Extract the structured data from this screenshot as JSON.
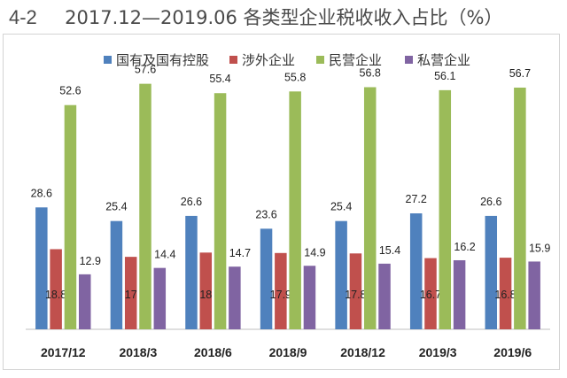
{
  "title": {
    "prefix": "4-2",
    "text": "2017.12—2019.06 各类型企业税收收入占比（%）"
  },
  "chart_data": {
    "type": "bar",
    "title": "2017.12—2019.06 各类型企业税收收入占比（%）",
    "xlabel": "",
    "ylabel": "",
    "ylim": [
      0,
      65
    ],
    "grid": false,
    "legend_position": "top",
    "categories": [
      "2017/12",
      "2018/3",
      "2018/6",
      "2018/9",
      "2018/12",
      "2019/3",
      "2019/6"
    ],
    "series": [
      {
        "name": "国有及国有控股",
        "color": "#4f81bd",
        "values": [
          28.6,
          25.4,
          26.6,
          23.6,
          25.4,
          27.2,
          26.6
        ]
      },
      {
        "name": "涉外企业",
        "color": "#c0504d",
        "values": [
          18.8,
          17,
          18,
          17.9,
          17.8,
          16.7,
          16.8
        ]
      },
      {
        "name": "民营企业",
        "color": "#9bbb59",
        "values": [
          52.6,
          57.6,
          55.4,
          55.8,
          56.8,
          56.1,
          56.7
        ]
      },
      {
        "name": "私营企业",
        "color": "#8064a2",
        "values": [
          12.9,
          14.4,
          14.7,
          14.9,
          15.4,
          16.2,
          15.9
        ]
      }
    ]
  }
}
